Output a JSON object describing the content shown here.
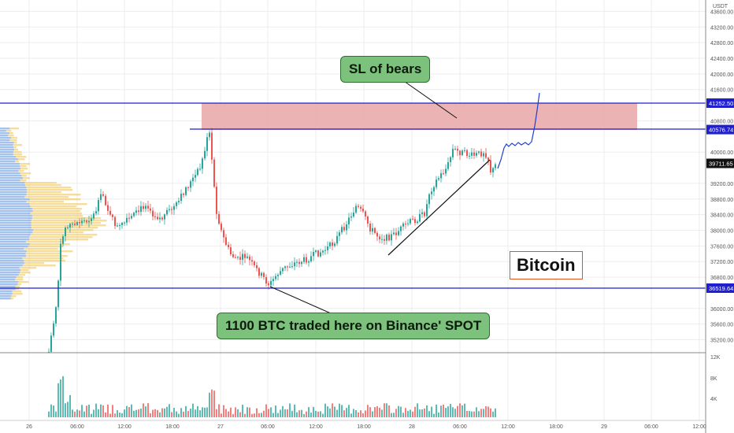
{
  "currency": "USDT",
  "annotations": {
    "sl_bears": "SL of bears",
    "btc_traded": "1100 BTC traded here on Binance' SPOT",
    "asset": "Bitcoin"
  },
  "price_axis": {
    "ticks": [
      "43600.00",
      "43200.00",
      "42800.00",
      "42400.00",
      "42000.00",
      "41600.00",
      "40800.00",
      "40000.00",
      "39200.00",
      "38800.00",
      "38400.00",
      "38000.00",
      "37600.00",
      "37200.00",
      "36800.00",
      "36000.00",
      "35600.00",
      "35200.00"
    ],
    "current_price": "39711.65",
    "levels": [
      "41252.50",
      "40576.74",
      "36519.64"
    ]
  },
  "volume_axis": {
    "ticks": [
      "12K",
      "8K",
      "4K"
    ]
  },
  "time_axis": {
    "ticks": [
      "26",
      "06:00",
      "12:00",
      "18:00",
      "27",
      "06:00",
      "12:00",
      "18:00",
      "28",
      "06:00",
      "12:00",
      "18:00",
      "29",
      "06:00",
      "12:00"
    ]
  },
  "colors": {
    "up": "#26a69a",
    "down": "#ef5350",
    "level_line": "#1f1fd0",
    "zone": "#e8a6a6",
    "callout": "#7cc27c",
    "label_border": "#e0551f"
  },
  "chart_data": {
    "type": "candlestick",
    "y_range": [
      35000,
      44000
    ],
    "resistance_zone": [
      40576.74,
      41252.5
    ],
    "horizontal_levels": [
      41252.5,
      40576.74,
      36519.64
    ],
    "last_price": 39711.65
  }
}
